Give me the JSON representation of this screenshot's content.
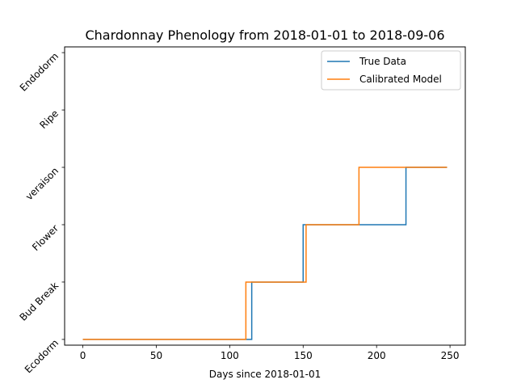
{
  "chart_data": {
    "type": "line",
    "title": "Chardonnay Phenology from 2018-01-01 to 2018-09-06",
    "xlabel": "Days since 2018-01-01",
    "ylabel": "",
    "xlim": [
      -12.4,
      260.4
    ],
    "ylim": [
      -0.1,
      5.1
    ],
    "x_ticks": [
      0,
      50,
      100,
      150,
      200,
      250
    ],
    "y_tick_labels": [
      "Ecodorm",
      "Bud Break",
      "Flower",
      "veraison",
      "Ripe",
      "Endodorm"
    ],
    "grid": false,
    "legend_position": "top-right",
    "series": [
      {
        "name": "True Data",
        "color": "#1f77b4",
        "step_x": [
          0,
          115,
          115,
          150,
          150,
          220,
          220,
          248
        ],
        "step_y": [
          0,
          0,
          1,
          1,
          2,
          2,
          3,
          3
        ]
      },
      {
        "name": "Calibrated Model",
        "color": "#ff7f0e",
        "step_x": [
          0,
          111,
          111,
          152,
          152,
          188,
          188,
          248
        ],
        "step_y": [
          0,
          0,
          1,
          1,
          2,
          2,
          3,
          3
        ]
      }
    ]
  }
}
